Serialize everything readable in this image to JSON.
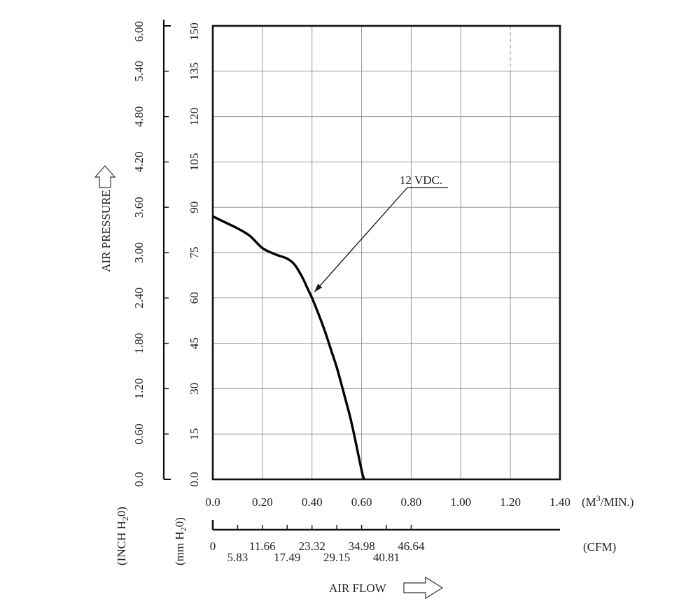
{
  "chart_data": {
    "type": "line",
    "xlabel": "AIR FLOW",
    "ylabel": "AIR PRESSURE",
    "x_unit_primary": "(M",
    "x_unit_primary_sup": "3",
    "x_unit_primary_tail": "/MIN.)",
    "x_unit_secondary": "(CFM)",
    "y_unit_mm": "(mm H",
    "y_unit_mm_sub": "2",
    "y_unit_mm_tail": "0)",
    "y_unit_inch": "(INCH H",
    "y_unit_inch_sub": "2",
    "y_unit_inch_tail": "0)",
    "xlim": [
      0,
      1.4
    ],
    "ylim": [
      0,
      150
    ],
    "x_ticks": [
      "0.0",
      "0.20",
      "0.40",
      "0.60",
      "0.80",
      "1.00",
      "1.20",
      "1.40"
    ],
    "x_tick_values": [
      0,
      0.2,
      0.4,
      0.6,
      0.8,
      1.0,
      1.2,
      1.4
    ],
    "cfm_ticks": [
      "0",
      "5.83",
      "11.66",
      "17.49",
      "23.32",
      "29.15",
      "34.98",
      "40.81",
      "46.64"
    ],
    "cfm_tick_values": [
      0,
      0.1,
      0.2,
      0.3,
      0.4,
      0.5,
      0.6,
      0.7,
      0.8
    ],
    "y_ticks_mm": [
      "0.0",
      "15",
      "30",
      "45",
      "60",
      "75",
      "90",
      "105",
      "120",
      "135",
      "150"
    ],
    "y_ticks_inch": [
      "0.0",
      "0.60",
      "1.20",
      "1.80",
      "2.40",
      "3.00",
      "3.60",
      "4.20",
      "4.80",
      "5.40",
      "6.00"
    ],
    "y_tick_values": [
      0,
      15,
      30,
      45,
      60,
      75,
      90,
      105,
      120,
      135,
      150
    ],
    "grid": true,
    "series": [
      {
        "name": "12 VDC.",
        "x": [
          0,
          0.05,
          0.1,
          0.15,
          0.2,
          0.25,
          0.3,
          0.33,
          0.36,
          0.38,
          0.4,
          0.42,
          0.45,
          0.48,
          0.5,
          0.53,
          0.56,
          0.6,
          0.61
        ],
        "y": [
          87,
          85,
          83,
          80.5,
          76.5,
          74.5,
          73,
          71,
          67,
          63.5,
          60,
          56,
          49.5,
          42,
          37,
          28,
          18.5,
          3,
          0
        ]
      }
    ],
    "annotation": {
      "text": "12 VDC.",
      "x": 0.41,
      "y": 62
    }
  }
}
